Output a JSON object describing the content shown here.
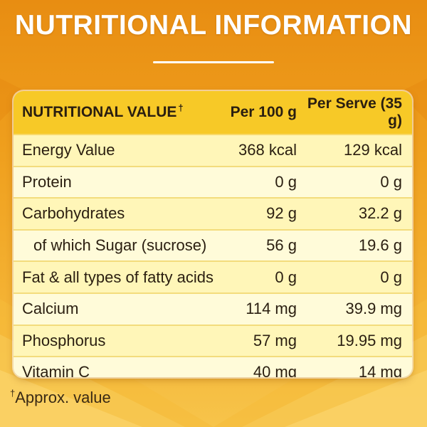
{
  "title": "NUTRITIONAL INFORMATION",
  "colors": {
    "background": "#ef9f1d",
    "header_band": "#f7c927",
    "row_light": "#fffbd9",
    "row_dark": "#fff6b8"
  },
  "table": {
    "headers": {
      "name": "NUTRITIONAL VALUE",
      "dagger": "†",
      "per_100g": "Per 100 g",
      "per_serve": "Per Serve (35 g)"
    },
    "rows": [
      {
        "name": "Energy Value",
        "per_100g": "368 kcal",
        "per_serve": "129 kcal"
      },
      {
        "name": "Protein",
        "per_100g": "0 g",
        "per_serve": "0 g"
      },
      {
        "name": "Carbohydrates",
        "per_100g": "92 g",
        "per_serve": "32.2 g"
      },
      {
        "name": "of which Sugar (sucrose)",
        "per_100g": "56 g",
        "per_serve": "19.6 g"
      },
      {
        "name": "Fat & all types of fatty acids",
        "per_100g": "0 g",
        "per_serve": "0 g"
      },
      {
        "name": "Calcium",
        "per_100g": "114 mg",
        "per_serve": "39.9 mg"
      },
      {
        "name": "Phosphorus",
        "per_100g": "57 mg",
        "per_serve": "19.95 mg"
      },
      {
        "name": "Vitamin C",
        "per_100g": "40 mg",
        "per_serve": "14 mg"
      }
    ]
  },
  "footnote": {
    "dagger": "†",
    "text": "Approx. value"
  }
}
